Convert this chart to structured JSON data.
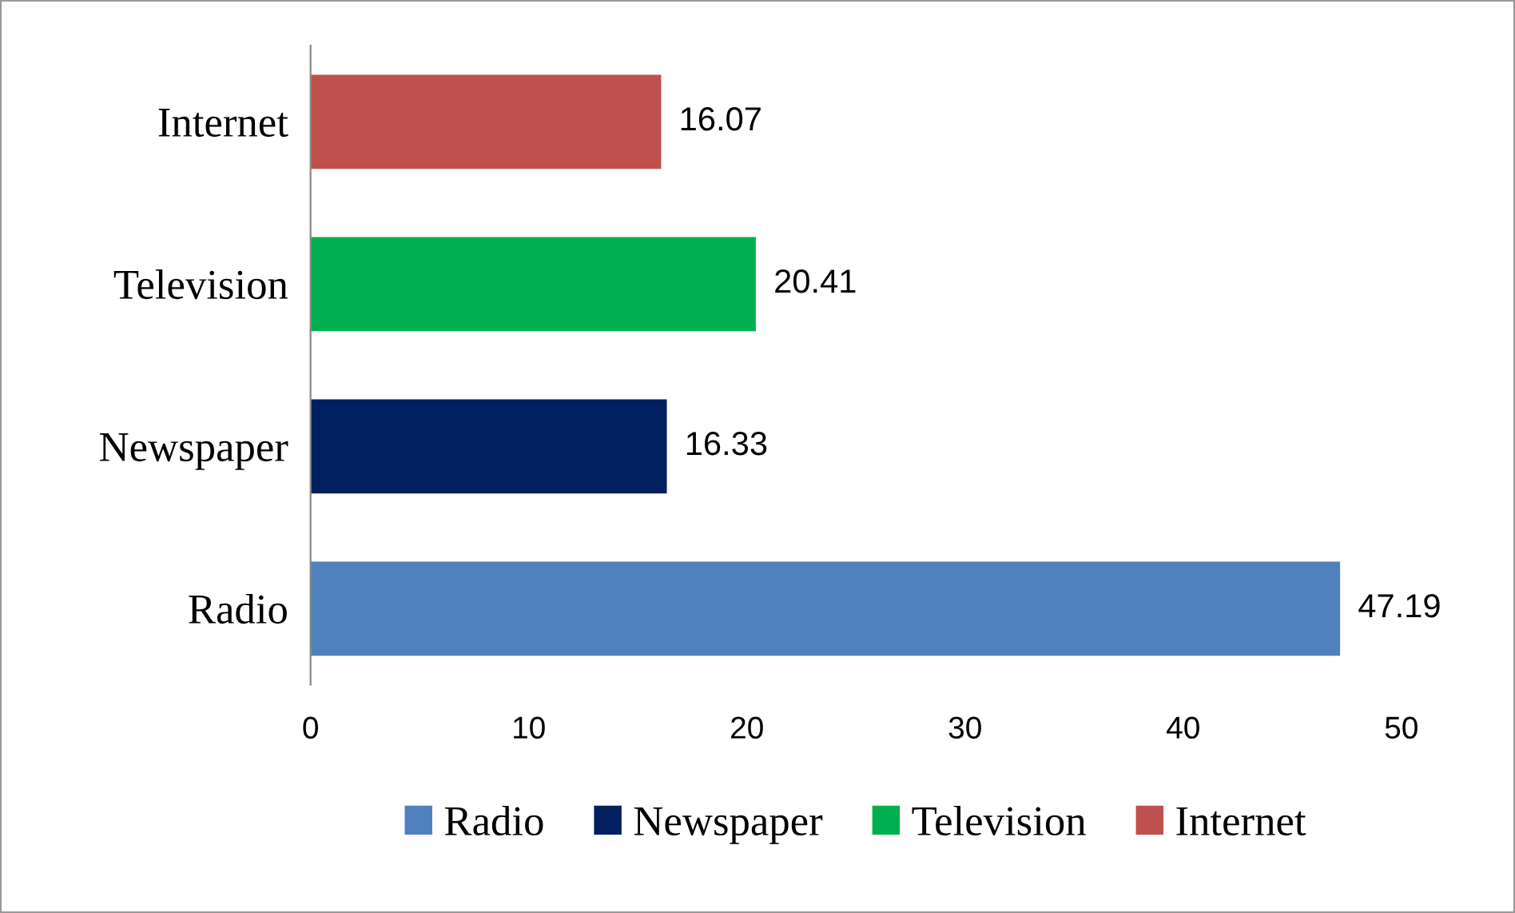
{
  "chart_data": {
    "type": "bar",
    "orientation": "horizontal",
    "categories": [
      "Internet",
      "Television",
      "Newspaper",
      "Radio"
    ],
    "series": [
      {
        "name": "Radio",
        "color": "#4f81bd",
        "values": [
          null,
          null,
          null,
          47.19
        ]
      },
      {
        "name": "Newspaper",
        "color": "#002060",
        "values": [
          null,
          null,
          16.33,
          null
        ]
      },
      {
        "name": "Television",
        "color": "#00b050",
        "values": [
          null,
          20.41,
          null,
          null
        ]
      },
      {
        "name": "Internet",
        "color": "#c0504d",
        "values": [
          16.07,
          null,
          null,
          null
        ]
      }
    ],
    "xlim": [
      0,
      50
    ],
    "xticks": [
      0,
      10,
      20,
      30,
      40,
      50
    ],
    "data_labels": true,
    "grid": false,
    "legend": "bottom"
  }
}
